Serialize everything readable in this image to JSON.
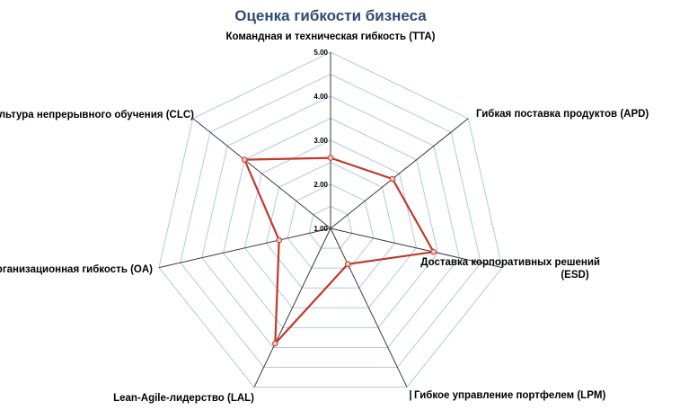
{
  "chart_data": {
    "type": "radar",
    "title": "Оценка гибкости бизнеса",
    "axes": [
      [
        "Командная и техническая гибкость (TTA)"
      ],
      [
        "Гибкая поставка продуктов (APD)"
      ],
      [
        "Доставка корпоративных решений",
        "(ESD)"
      ],
      [
        "Гибкое управление портфелем (LPM)"
      ],
      [
        "Lean-Agile-лидерство (LAL)"
      ],
      [
        "Организационная гибкость (OA)"
      ],
      [
        "Культура непрерывного обучения (CLC)"
      ]
    ],
    "tick_labels": [
      "1.00",
      "2.00",
      "3.00",
      "4.00",
      "5.00"
    ],
    "rlim": [
      1,
      5
    ],
    "grid": true,
    "series": [
      {
        "values": [
          2.6,
          2.8,
          3.4,
          1.9,
          3.9,
          2.2,
          3.5
        ]
      }
    ],
    "colors": {
      "series": "#c0392b",
      "marker_fill": "#f3c8c0",
      "grid": "#b4c6e7",
      "spoke": "#3a3a3a",
      "title": "#2f4a73"
    }
  },
  "stray_mark": "|"
}
